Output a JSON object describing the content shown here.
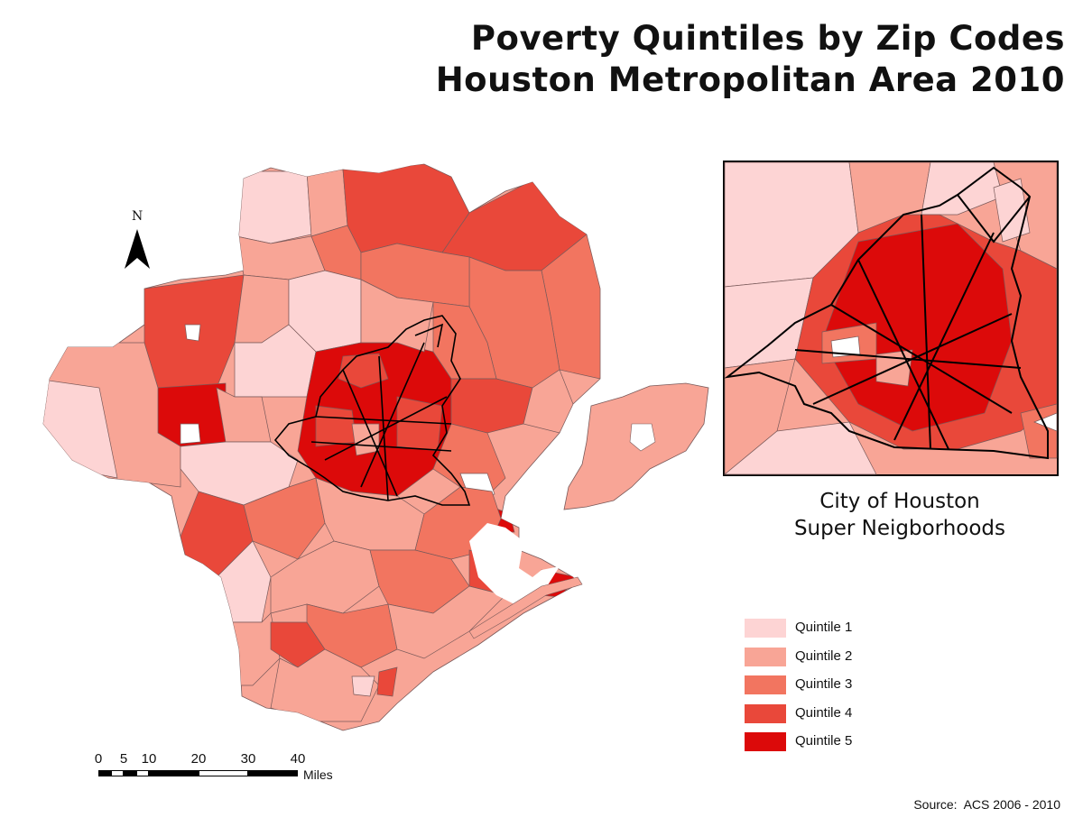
{
  "title": {
    "line1": "Poverty Quintiles by Zip Codes",
    "line2": "Houston Metropolitan Area 2010"
  },
  "inset": {
    "caption_line1": "City of Houston",
    "caption_line2": "Super Neigborhoods"
  },
  "legend": {
    "items": [
      {
        "label": "Quintile 1",
        "color": "#fdd4d4"
      },
      {
        "label": "Quintile 2",
        "color": "#f8a596"
      },
      {
        "label": "Quintile 3",
        "color": "#f27560"
      },
      {
        "label": "Quintile 4",
        "color": "#e9483a"
      },
      {
        "label": "Quintile 5",
        "color": "#dc0a0a"
      }
    ]
  },
  "scale_bar": {
    "ticks": [
      "0",
      "5",
      "10",
      "20",
      "30",
      "40"
    ],
    "unit": "Miles"
  },
  "north_arrow": {
    "letter": "N",
    "icon": "north-arrow-icon"
  },
  "source": "Source:  ACS 2006 - 2010",
  "colors": {
    "boundary": "#7a5a5a",
    "super_neighborhood_outline": "#000000"
  }
}
